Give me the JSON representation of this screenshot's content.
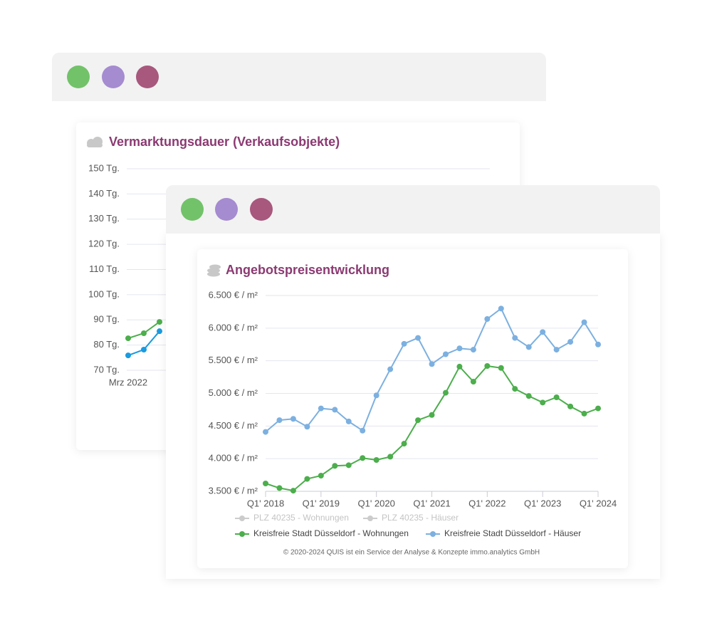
{
  "chart_data": [
    {
      "type": "line",
      "title": "Vermarktungsdauer (Verkaufsobjekte)",
      "categories": [
        "Mrz 2022",
        null,
        null
      ],
      "series": [
        {
          "color": "#4cae4c",
          "values": [
            82.7,
            84.7,
            89.2
          ]
        },
        {
          "color": "#1a9be0",
          "values": [
            75.9,
            78.2,
            85.5
          ]
        }
      ],
      "ylim": [
        70,
        150
      ],
      "yticks": [
        {
          "value": 70,
          "label": "70 Tg."
        },
        {
          "value": 80,
          "label": "80 Tg."
        },
        {
          "value": 90,
          "label": "90 Tg."
        },
        {
          "value": 100,
          "label": "100 Tg."
        },
        {
          "value": 110,
          "label": "110 Tg."
        },
        {
          "value": 120,
          "label": "120 Tg."
        },
        {
          "value": 130,
          "label": "130 Tg."
        },
        {
          "value": 140,
          "label": "140 Tg."
        },
        {
          "value": 150,
          "label": "150 Tg."
        }
      ],
      "grid": true
    },
    {
      "type": "line",
      "title": "Angebotspreisentwicklung",
      "categories": [
        "Q1' 2018",
        null,
        null,
        null,
        "Q1' 2019",
        null,
        null,
        null,
        "Q1' 2020",
        null,
        null,
        null,
        "Q1' 2021",
        null,
        null,
        null,
        "Q1' 2022",
        null,
        null,
        null,
        "Q1' 2023",
        null,
        null,
        null,
        "Q1' 2024"
      ],
      "series": [
        {
          "name": "PLZ 40235 - Wohnungen",
          "color": "#cccccc",
          "hidden": true,
          "values": [
            null,
            null,
            null,
            null,
            null,
            null,
            null,
            null,
            null,
            null,
            null,
            null,
            null,
            null,
            null,
            null,
            null,
            null,
            null,
            null,
            null,
            null,
            null,
            null,
            null
          ]
        },
        {
          "name": "PLZ 40235 - Häuser",
          "color": "#cccccc",
          "hidden": true,
          "values": [
            null,
            null,
            null,
            null,
            null,
            null,
            null,
            null,
            null,
            null,
            null,
            null,
            null,
            null,
            null,
            null,
            null,
            null,
            null,
            null,
            null,
            null,
            null,
            null,
            null
          ]
        },
        {
          "name": "Kreisfreie Stadt Düsseldorf - Wohnungen",
          "color": "#4cae4c",
          "values": [
            3620,
            3550,
            3510,
            3690,
            3740,
            3890,
            3900,
            4010,
            3980,
            4030,
            4230,
            4590,
            4670,
            5010,
            5410,
            5180,
            5420,
            5390,
            5070,
            4960,
            4860,
            4940,
            4800,
            4690,
            4770
          ]
        },
        {
          "name": "Kreisfreie Stadt Düsseldorf - Häuser",
          "color": "#7cb0e0",
          "values": [
            4410,
            4590,
            4610,
            4490,
            4770,
            4750,
            4570,
            4430,
            4970,
            5370,
            5760,
            5850,
            5450,
            5600,
            5690,
            5670,
            6140,
            6300,
            5850,
            5710,
            5940,
            5670,
            5790,
            6090,
            5750
          ]
        }
      ],
      "ylim": [
        3500,
        6500
      ],
      "yticks": [
        {
          "value": 3500,
          "label": "3.500 € / m²"
        },
        {
          "value": 4000,
          "label": "4.000 € / m²"
        },
        {
          "value": 4500,
          "label": "4.500 € / m²"
        },
        {
          "value": 5000,
          "label": "5.000 € / m²"
        },
        {
          "value": 5500,
          "label": "5.500 € / m²"
        },
        {
          "value": 6000,
          "label": "6.000 € / m²"
        },
        {
          "value": 6500,
          "label": "6.500 € / m²"
        }
      ],
      "grid": true,
      "legend": "bottom",
      "credit": "© 2020-2024 QUIS ist ein Service der Analyse & Konzepte immo.analytics GmbH"
    }
  ]
}
